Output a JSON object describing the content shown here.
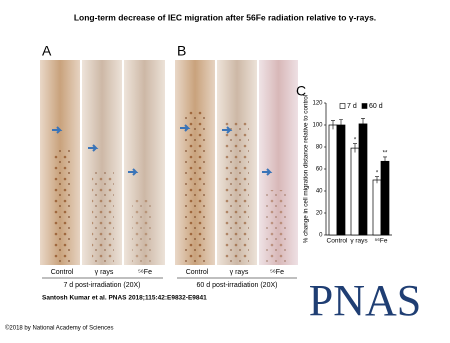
{
  "title": "Long-term decrease of IEC migration after 56Fe radiation relative to γ-rays.",
  "panels": {
    "A": {
      "label": "A",
      "conditions": [
        "Control",
        "γ rays",
        "⁵⁶Fe"
      ],
      "caption": "7 d post-irradiation (20X)"
    },
    "B": {
      "label": "B",
      "conditions": [
        "Control",
        "γ rays",
        "⁵⁶Fe"
      ],
      "caption": "60 d post-irradiation (20X)"
    },
    "C": {
      "label": "C"
    }
  },
  "chart_data": {
    "type": "bar",
    "ylabel": "% change in cell migration distance relative to control",
    "categories": [
      "Control",
      "γ rays",
      "⁵⁶Fe"
    ],
    "series": [
      {
        "name": "7 d",
        "color": "#ffffff",
        "values": [
          100,
          79,
          50
        ],
        "errors": [
          4,
          4,
          3
        ],
        "significance": [
          null,
          "*",
          "*"
        ]
      },
      {
        "name": "60 d",
        "color": "#000000",
        "values": [
          100,
          101,
          67
        ],
        "errors": [
          5,
          5,
          4
        ],
        "significance": [
          null,
          null,
          "**"
        ]
      }
    ],
    "ylim": [
      0,
      120
    ],
    "yticks": [
      0,
      20,
      40,
      60,
      80,
      100,
      120
    ],
    "legend": "top"
  },
  "citation": "Santosh Kumar et al. PNAS 2018;115:42:E9832-E9841",
  "logo": "PNAS",
  "copyright": "©2018 by National Academy of Sciences"
}
